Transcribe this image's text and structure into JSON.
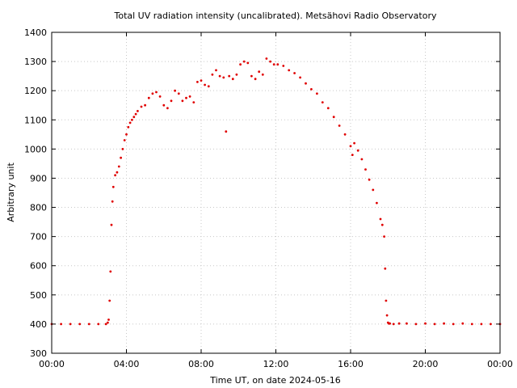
{
  "chart_data": {
    "type": "scatter",
    "title": "Total UV radiation intensity (uncalibrated). Metsähovi Radio Observatory",
    "xlabel": "Time UT, on date 2024-05-16",
    "ylabel": "Arbitrary unit",
    "xlim": [
      0,
      24
    ],
    "ylim": [
      300,
      1400
    ],
    "xticks": [
      0,
      4,
      8,
      12,
      16,
      20,
      24
    ],
    "xtick_labels": [
      "00:00",
      "04:00",
      "08:00",
      "12:00",
      "16:00",
      "20:00",
      "00:00"
    ],
    "yticks": [
      300,
      400,
      500,
      600,
      700,
      800,
      900,
      1000,
      1100,
      1200,
      1300,
      1400
    ],
    "ytick_labels": [
      "300",
      "400",
      "500",
      "600",
      "700",
      "800",
      "900",
      "1000",
      "1100",
      "1200",
      "1300",
      "1400"
    ],
    "grid": true,
    "marker_color": "#e00000",
    "series": [
      {
        "x": [
          0,
          0.5,
          1,
          1.5,
          2,
          2.5,
          2.9,
          3.0,
          3.05,
          3.1,
          3.15,
          3.2,
          3.25,
          3.3,
          3.4,
          3.5,
          3.6,
          3.7,
          3.8,
          3.9,
          4.0,
          4.1,
          4.2,
          4.3,
          4.4,
          4.5,
          4.6,
          4.8,
          5.0,
          5.2,
          5.4,
          5.6,
          5.8,
          6.0,
          6.2,
          6.4,
          6.6,
          6.8,
          7.0,
          7.2,
          7.4,
          7.6,
          7.8,
          8.0,
          8.2,
          8.4,
          8.6,
          8.8,
          9.0,
          9.2,
          9.33,
          9.5,
          9.7,
          9.9,
          10.1,
          10.3,
          10.5,
          10.7,
          10.9,
          11.1,
          11.3,
          11.5,
          11.7,
          11.9,
          12.1,
          12.4,
          12.7,
          13.0,
          13.3,
          13.6,
          13.9,
          14.2,
          14.5,
          14.8,
          15.1,
          15.4,
          15.7,
          16.0,
          16.1,
          16.2,
          16.4,
          16.6,
          16.8,
          17.0,
          17.2,
          17.4,
          17.6,
          17.7,
          17.8,
          17.85,
          17.9,
          17.95,
          18.0,
          18.05,
          18.1,
          18.3,
          18.6,
          19.0,
          19.5,
          20.0,
          20.5,
          21.0,
          21.5,
          22.0,
          22.5,
          23.0,
          23.5,
          24.0
        ],
        "y": [
          400,
          400,
          400,
          400,
          400,
          400,
          400,
          405,
          415,
          480,
          580,
          740,
          820,
          870,
          910,
          920,
          940,
          970,
          1000,
          1030,
          1050,
          1075,
          1090,
          1100,
          1110,
          1120,
          1130,
          1145,
          1150,
          1175,
          1190,
          1195,
          1180,
          1150,
          1140,
          1165,
          1200,
          1190,
          1165,
          1175,
          1180,
          1160,
          1230,
          1235,
          1220,
          1215,
          1255,
          1270,
          1250,
          1245,
          1060,
          1250,
          1240,
          1255,
          1290,
          1300,
          1295,
          1250,
          1240,
          1265,
          1255,
          1310,
          1300,
          1290,
          1290,
          1285,
          1270,
          1260,
          1245,
          1225,
          1205,
          1190,
          1160,
          1140,
          1110,
          1080,
          1050,
          1010,
          980,
          1020,
          995,
          965,
          930,
          895,
          860,
          815,
          760,
          740,
          700,
          590,
          480,
          430,
          405,
          402,
          402,
          400,
          402,
          402,
          400,
          402,
          400,
          402,
          400,
          402,
          400,
          400,
          400,
          400
        ]
      }
    ]
  }
}
